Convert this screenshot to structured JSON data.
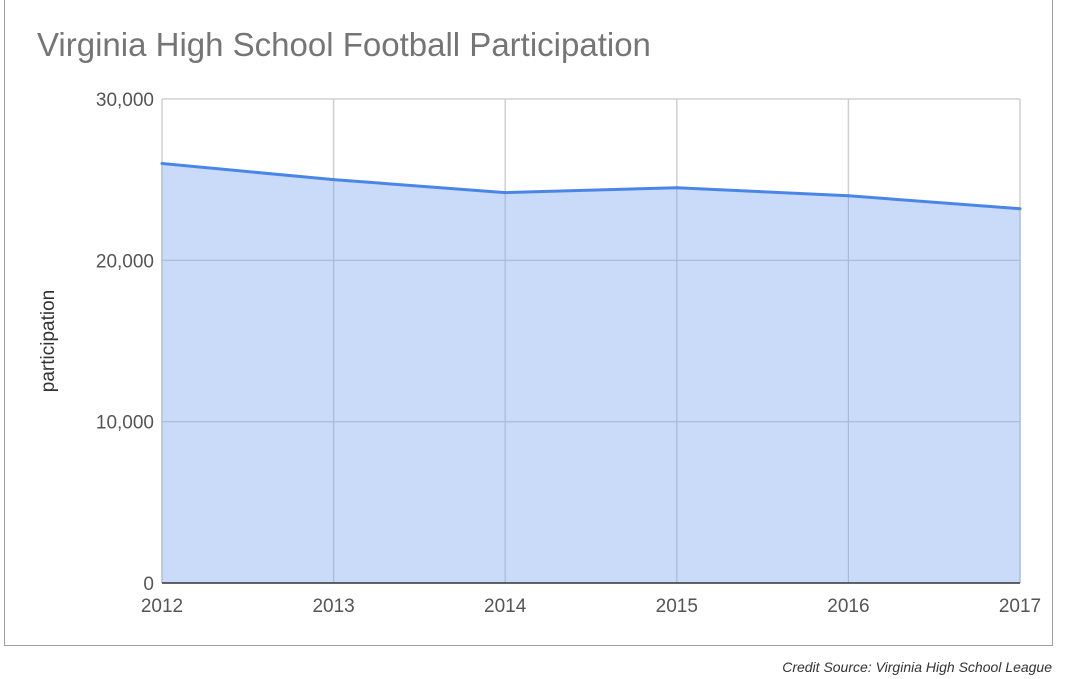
{
  "chart_data": {
    "type": "area",
    "title": "Virginia High School Football Participation",
    "xlabel": "",
    "ylabel": "participation",
    "x": [
      "2012",
      "2013",
      "2014",
      "2015",
      "2016",
      "2017"
    ],
    "series": [
      {
        "values": [
          26000,
          25000,
          24200,
          24500,
          24000,
          23200
        ]
      }
    ],
    "ylim": [
      0,
      30000
    ],
    "yticks": [
      "0",
      "10,000",
      "20,000",
      "30,000"
    ],
    "grid": true,
    "legend": "none",
    "colors": {
      "line": "#4a86e8",
      "fill": "#c6d9f9"
    }
  },
  "credit": "Credit Source: Virginia High School League"
}
